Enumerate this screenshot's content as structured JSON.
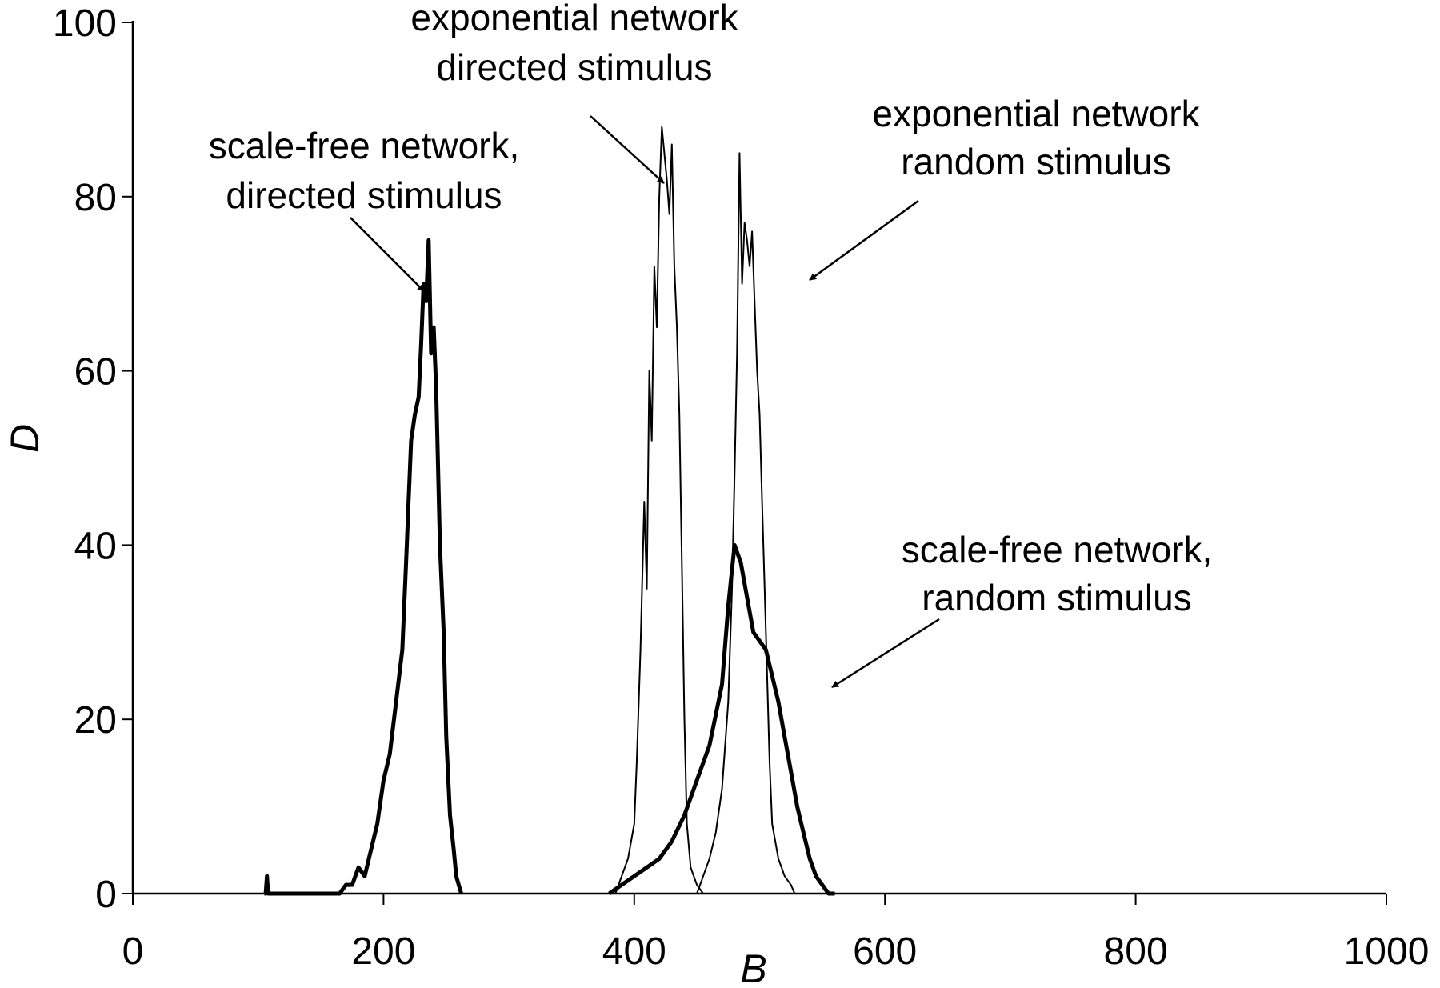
{
  "chart_data": {
    "type": "line",
    "title": "",
    "xlabel": "B",
    "ylabel": "D",
    "xlim": [
      0,
      1000
    ],
    "ylim": [
      0,
      100
    ],
    "xticks": [
      "0",
      "200",
      "400",
      "600",
      "800",
      "1000"
    ],
    "yticks": [
      "0",
      "20",
      "40",
      "60",
      "80",
      "100"
    ],
    "grid": false,
    "series": [
      {
        "key": "sf_directed",
        "x": [
          105,
          106,
          107,
          108,
          110,
          165,
          170,
          175,
          180,
          185,
          190,
          195,
          200,
          205,
          210,
          215,
          218,
          220,
          222,
          225,
          228,
          230,
          232,
          234,
          236,
          238,
          240,
          242,
          245,
          248,
          250,
          253,
          256,
          258,
          260,
          262
        ],
        "y": [
          0,
          0,
          2,
          0,
          0,
          0,
          1,
          1,
          3,
          2,
          5,
          8,
          13,
          16,
          22,
          28,
          38,
          45,
          52,
          55,
          57,
          63,
          70,
          68,
          75,
          62,
          65,
          58,
          40,
          30,
          18,
          9,
          5,
          2,
          1,
          0
        ],
        "style": "thick"
      },
      {
        "key": "exp_directed",
        "x": [
          385,
          390,
          395,
          400,
          402,
          405,
          408,
          410,
          412,
          414,
          416,
          418,
          420,
          422,
          424,
          426,
          428,
          430,
          432,
          434,
          436,
          438,
          440,
          442,
          445,
          450,
          455
        ],
        "y": [
          0,
          2,
          4,
          8,
          15,
          28,
          45,
          35,
          60,
          52,
          72,
          65,
          80,
          88,
          85,
          82,
          78,
          86,
          72,
          65,
          55,
          38,
          20,
          8,
          3,
          1,
          0
        ],
        "style": "thin"
      },
      {
        "key": "exp_random",
        "x": [
          450,
          455,
          460,
          465,
          470,
          475,
          478,
          480,
          482,
          484,
          486,
          488,
          490,
          492,
          494,
          496,
          498,
          500,
          502,
          504,
          506,
          508,
          510,
          515,
          520,
          525,
          528
        ],
        "y": [
          0,
          2,
          4,
          7,
          12,
          22,
          35,
          48,
          62,
          85,
          70,
          77,
          75,
          72,
          76,
          68,
          60,
          55,
          45,
          35,
          25,
          15,
          8,
          4,
          2,
          1,
          0
        ],
        "style": "thin"
      },
      {
        "key": "sf_random",
        "x": [
          380,
          390,
          400,
          410,
          420,
          430,
          440,
          450,
          460,
          470,
          475,
          480,
          485,
          490,
          495,
          500,
          505,
          510,
          515,
          520,
          525,
          530,
          535,
          540,
          545,
          550,
          555,
          560
        ],
        "y": [
          0,
          1,
          2,
          3,
          4,
          6,
          9,
          13,
          17,
          24,
          33,
          40,
          38,
          34,
          30,
          29,
          28,
          25,
          22,
          18,
          14,
          10,
          7,
          4,
          2,
          1,
          0,
          0
        ],
        "style": "thick"
      }
    ],
    "annotations": [
      {
        "lines": [
          "scale-free network,",
          "directed stimulus"
        ]
      },
      {
        "lines": [
          "exponential network",
          "directed stimulus"
        ]
      },
      {
        "lines": [
          "exponential network",
          "random stimulus"
        ]
      },
      {
        "lines": [
          "scale-free network,",
          "random stimulus"
        ]
      }
    ]
  }
}
